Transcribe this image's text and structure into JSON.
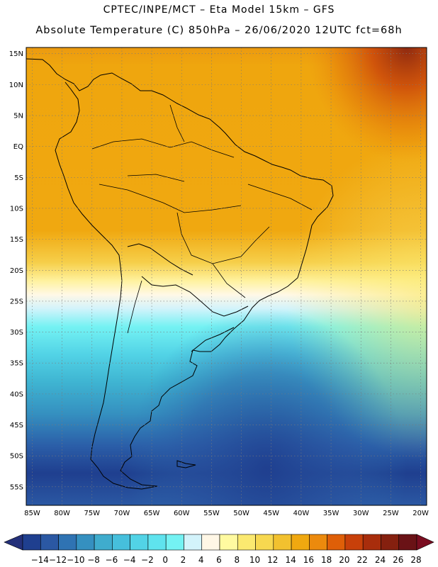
{
  "header": {
    "line1": "CPTEC/INPE/MCT –  Eta Model 15km – GFS",
    "line2": "Absolute Temperature (C) 850hPa – 26/06/2020 12UTC fct=68h"
  },
  "map": {
    "lat_labels": [
      "15N",
      "10N",
      "5N",
      "EQ",
      "5S",
      "10S",
      "15S",
      "20S",
      "25S",
      "30S",
      "35S",
      "40S",
      "45S",
      "50S",
      "55S"
    ],
    "lon_labels": [
      "85W",
      "80W",
      "75W",
      "70W",
      "65W",
      "60W",
      "55W",
      "50W",
      "45W",
      "40W",
      "35W",
      "30W",
      "25W",
      "20W"
    ],
    "grid": "dotted",
    "lat_range": [
      -58,
      16
    ],
    "lon_range": [
      -86,
      -19
    ]
  },
  "colorbar": {
    "labels": [
      "-14",
      "-12",
      "-10",
      "-8",
      "-6",
      "-4",
      "-2",
      "0",
      "2",
      "4",
      "6",
      "8",
      "10",
      "12",
      "14",
      "16",
      "18",
      "20",
      "22",
      "24",
      "26",
      "28"
    ],
    "colors": [
      "#1f3f8f",
      "#2b58a3",
      "#2f73b3",
      "#3590c0",
      "#3faccd",
      "#46bfdc",
      "#52d3e6",
      "#5fe3ee",
      "#74f2f3",
      "#d3f3fb",
      "#fff7e6",
      "#fffaa0",
      "#fbe970",
      "#f7d850",
      "#f2c12f",
      "#f0a810",
      "#ec8a0d",
      "#df5f08",
      "#c8400a",
      "#a82d0c",
      "#85200f",
      "#6a1216"
    ]
  }
}
